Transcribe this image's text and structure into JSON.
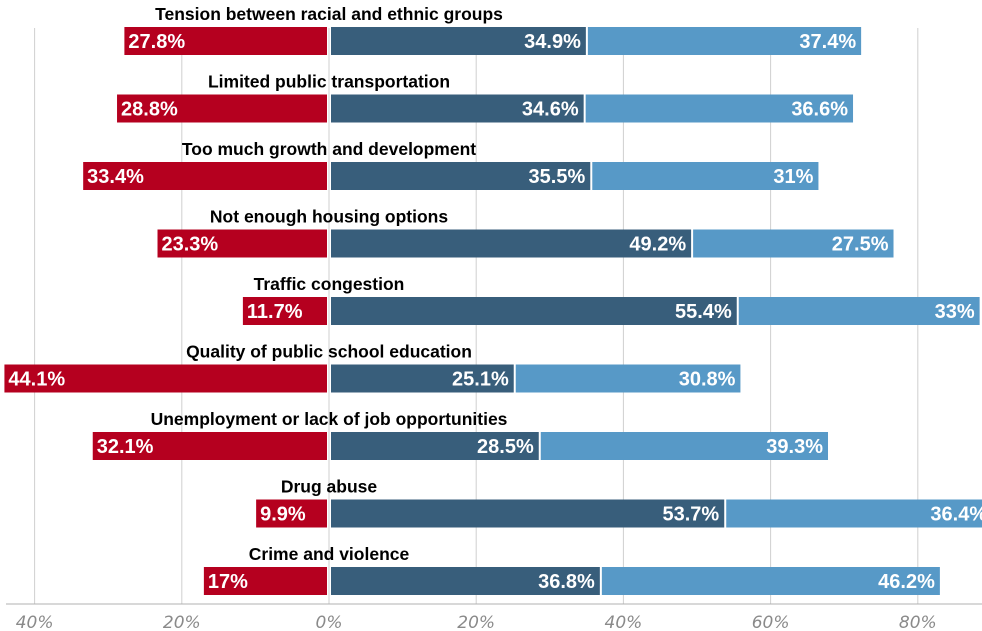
{
  "chart_data": {
    "type": "bar",
    "orientation": "horizontal-diverging-stacked",
    "categories": [
      "Tension between racial and ethnic groups",
      "Limited public transportation",
      "Too much growth and development",
      "Not enough housing options",
      "Traffic congestion",
      "Quality of public school education",
      "Unemployment or lack of job opportunities",
      "Drug abuse",
      "Crime and violence"
    ],
    "series": [
      {
        "side": "left",
        "color": "#b5001f",
        "values": [
          27.8,
          28.8,
          33.4,
          23.3,
          11.7,
          44.1,
          32.1,
          9.9,
          17
        ],
        "labels": [
          "27.8%",
          "28.8%",
          "33.4%",
          "23.3%",
          "11.7%",
          "44.1%",
          "32.1%",
          "9.9%",
          "17%"
        ]
      },
      {
        "side": "right",
        "color": "#385e7b",
        "values": [
          34.9,
          34.6,
          35.5,
          49.2,
          55.4,
          25.1,
          28.5,
          53.7,
          36.8
        ],
        "labels": [
          "34.9%",
          "34.6%",
          "35.5%",
          "49.2%",
          "55.4%",
          "25.1%",
          "28.5%",
          "53.7%",
          "36.8%"
        ]
      },
      {
        "side": "right",
        "color": "#5799c7",
        "values": [
          37.4,
          36.6,
          31,
          27.5,
          33,
          30.8,
          39.3,
          36.4,
          46.2
        ],
        "labels": [
          "37.4%",
          "36.6%",
          "31%",
          "27.5%",
          "33%",
          "30.8%",
          "39.3%",
          "36.4%",
          "46.2%"
        ]
      }
    ],
    "xlim": [
      -44.4,
      88.5
    ],
    "x_ticks": [
      -40,
      -20,
      0,
      20,
      40,
      60,
      80
    ],
    "x_tick_labels": [
      "40%",
      "20%",
      "0%",
      "20%",
      "40%",
      "60%",
      "80%"
    ],
    "grid": true,
    "title": "",
    "xlabel": "",
    "ylabel": ""
  }
}
